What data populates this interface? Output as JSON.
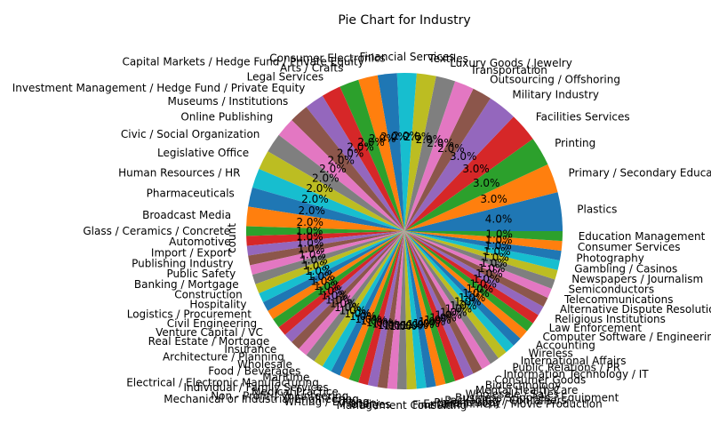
{
  "chart_data": {
    "type": "pie",
    "title": "Pie Chart for Industry",
    "ylabel": "count",
    "start_angle_deg": 0,
    "direction": "counterclockwise",
    "palette": [
      "#1f77b4",
      "#ff7f0e",
      "#2ca02c",
      "#d62728",
      "#9467bd",
      "#8c564b",
      "#e377c2",
      "#7f7f7f",
      "#bcbd22",
      "#17becf"
    ],
    "slices": [
      {
        "label": "Plastics",
        "value": 4,
        "pct": "4.0%"
      },
      {
        "label": "Primary / Secondary Education",
        "value": 3,
        "pct": "3.0%"
      },
      {
        "label": "Printing",
        "value": 3,
        "pct": "3.0%"
      },
      {
        "label": "Facilities Services",
        "value": 3,
        "pct": "3.0%"
      },
      {
        "label": "Military Industry",
        "value": 3,
        "pct": "3.0%"
      },
      {
        "label": "Outsourcing / Offshoring",
        "value": 2,
        "pct": "2.0%"
      },
      {
        "label": "Transportation",
        "value": 2,
        "pct": "2.0%"
      },
      {
        "label": "Luxury Goods / Jewelry",
        "value": 2,
        "pct": "2.0%"
      },
      {
        "label": "Textiles",
        "value": 2,
        "pct": "2.0%"
      },
      {
        "label": "Financial Services",
        "value": 2,
        "pct": "2.0%"
      },
      {
        "label": "Consumer Electronics",
        "value": 2,
        "pct": "2.0%"
      },
      {
        "label": "Capital Markets / Hedge Fund / Private Equity",
        "value": 2,
        "pct": "2.0%"
      },
      {
        "label": "Arts / Crafts",
        "value": 2,
        "pct": "2.0%"
      },
      {
        "label": "Legal Services",
        "value": 2,
        "pct": "2.0%"
      },
      {
        "label": "Investment Management / Hedge Fund / Private Equity",
        "value": 2,
        "pct": "2.0%"
      },
      {
        "label": "Museums / Institutions",
        "value": 2,
        "pct": "2.0%"
      },
      {
        "label": "Online Publishing",
        "value": 2,
        "pct": "2.0%"
      },
      {
        "label": "Civic / Social Organization",
        "value": 2,
        "pct": "2.0%"
      },
      {
        "label": "Legislative Office",
        "value": 2,
        "pct": "2.0%"
      },
      {
        "label": "Human Resources / HR",
        "value": 2,
        "pct": "2.0%"
      },
      {
        "label": "Pharmaceuticals",
        "value": 2,
        "pct": "2.0%"
      },
      {
        "label": "Broadcast Media",
        "value": 2,
        "pct": "2.0%"
      },
      {
        "label": "Glass / Ceramics / Concrete",
        "value": 1,
        "pct": "1.0%"
      },
      {
        "label": "Automotive",
        "value": 1,
        "pct": "1.0%"
      },
      {
        "label": "Import / Export",
        "value": 1,
        "pct": "1.0%"
      },
      {
        "label": "Publishing Industry",
        "value": 1,
        "pct": "1.0%"
      },
      {
        "label": "Public Safety",
        "value": 1,
        "pct": "1.0%"
      },
      {
        "label": "Banking / Mortgage",
        "value": 1,
        "pct": "1.0%"
      },
      {
        "label": "Construction",
        "value": 1,
        "pct": "1.0%"
      },
      {
        "label": "Hospitality",
        "value": 1,
        "pct": "1.0%"
      },
      {
        "label": "Logistics / Procurement",
        "value": 1,
        "pct": "1.0%"
      },
      {
        "label": "Civil Engineering",
        "value": 1,
        "pct": "1.0%"
      },
      {
        "label": "Venture Capital / VC",
        "value": 1,
        "pct": "1.0%"
      },
      {
        "label": "Real Estate / Mortgage",
        "value": 1,
        "pct": "1.0%"
      },
      {
        "label": "Insurance",
        "value": 1,
        "pct": "1.0%"
      },
      {
        "label": "Architecture / Planning",
        "value": 1,
        "pct": "1.0%"
      },
      {
        "label": "Wholesale",
        "value": 1,
        "pct": "1.0%"
      },
      {
        "label": "Food / Beverages",
        "value": 1,
        "pct": "1.0%"
      },
      {
        "label": "Maritime",
        "value": 1,
        "pct": "1.0%"
      },
      {
        "label": "Electrical / Electronic Manufacturing",
        "value": 1,
        "pct": "1.0%"
      },
      {
        "label": "Individual / Family Services",
        "value": 1,
        "pct": "1.0%"
      },
      {
        "label": "Medical Practice",
        "value": 1,
        "pct": "1.0%"
      },
      {
        "label": "Non - Profit / Volunteering",
        "value": 1,
        "pct": "1.0%"
      },
      {
        "label": "Mechanical or Industrial Engineering",
        "value": 1,
        "pct": "1.0%"
      },
      {
        "label": "Writing / Editing",
        "value": 1,
        "pct": "1.0%"
      },
      {
        "label": "Fishery",
        "value": 1,
        "pct": "1.0%"
      },
      {
        "label": "Utilities",
        "value": 1,
        "pct": "1.0%"
      },
      {
        "label": "Management Consulting",
        "value": 1,
        "pct": "1.0%"
      },
      {
        "label": "Fine Art",
        "value": 1,
        "pct": "1.0%"
      },
      {
        "label": "Entertainment / Movie Production",
        "value": 1,
        "pct": "1.0%"
      },
      {
        "label": "Philanthropy",
        "value": 1,
        "pct": "1.0%"
      },
      {
        "label": "Packaging / Containers",
        "value": 1,
        "pct": "1.0%"
      },
      {
        "label": "Business Supplies / Equipment",
        "value": 1,
        "pct": "1.0%"
      },
      {
        "label": "Wholesale / Sales",
        "value": 1,
        "pct": "1.0%"
      },
      {
        "label": "Mental Health Care",
        "value": 1,
        "pct": "1.0%"
      },
      {
        "label": "Biotechnology",
        "value": 1,
        "pct": "1.0%"
      },
      {
        "label": "Consumer Goods",
        "value": 1,
        "pct": "1.0%"
      },
      {
        "label": "Information Technology / IT",
        "value": 1,
        "pct": "1.0%"
      },
      {
        "label": "Public Relations / PR",
        "value": 1,
        "pct": "1.0%"
      },
      {
        "label": "International Affairs",
        "value": 1,
        "pct": "1.0%"
      },
      {
        "label": "Wireless",
        "value": 1,
        "pct": "1.0%"
      },
      {
        "label": "Accounting",
        "value": 1,
        "pct": "1.0%"
      },
      {
        "label": "Computer Software / Engineering",
        "value": 1,
        "pct": "1.0%"
      },
      {
        "label": "Law Enforcement",
        "value": 1,
        "pct": "1.0%"
      },
      {
        "label": "Religious Institutions",
        "value": 1,
        "pct": "1.0%"
      },
      {
        "label": "Alternative Dispute Resolution",
        "value": 1,
        "pct": "1.0%"
      },
      {
        "label": "Telecommunications",
        "value": 1,
        "pct": "1.0%"
      },
      {
        "label": "Semiconductors",
        "value": 1,
        "pct": "1.0%"
      },
      {
        "label": "Newspapers / Journalism",
        "value": 1,
        "pct": "1.0%"
      },
      {
        "label": "Gambling / Casinos",
        "value": 1,
        "pct": "1.0%"
      },
      {
        "label": "Photography",
        "value": 1,
        "pct": "1.0%"
      },
      {
        "label": "Consumer Services",
        "value": 1,
        "pct": "1.0%"
      },
      {
        "label": "Education Management",
        "value": 1,
        "pct": "1.0%"
      }
    ]
  }
}
